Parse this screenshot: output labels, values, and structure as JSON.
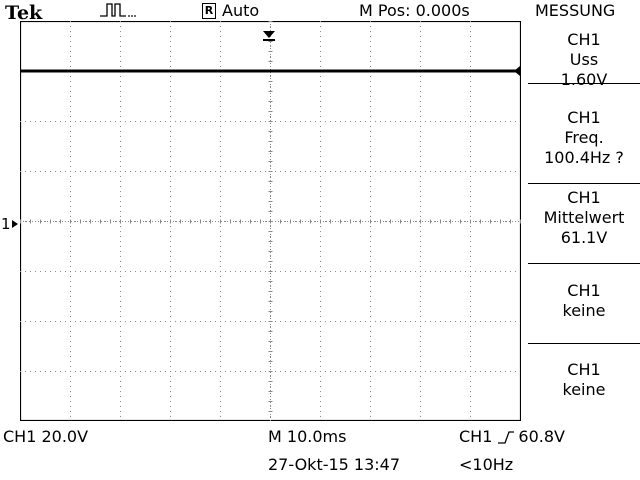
{
  "header": {
    "brand": "Tek",
    "acquire_icon": "pulse-acquire-icon",
    "trigger_box_letter": "R",
    "trigger_mode": "Auto",
    "mpos": "M Pos: 0.000s",
    "menu_title": "MESSUNG"
  },
  "screen": {
    "ch1_marker": "1",
    "trace_level_fraction": 0.125,
    "trigger_position_marker": "down-arrow-icon",
    "trigger_level_marker": "left-arrow-icon"
  },
  "menu": {
    "items": [
      {
        "line1": "CH1",
        "line2": "Uss",
        "line3": "1.60V"
      },
      {
        "line1": "CH1",
        "line2": "Freq.",
        "line3": "100.4Hz ?"
      },
      {
        "line1": "CH1",
        "line2": "Mittelwert",
        "line3": "61.1V"
      },
      {
        "line1": "CH1",
        "line2": "keine",
        "line3": ""
      },
      {
        "line1": "CH1",
        "line2": "keine",
        "line3": ""
      }
    ]
  },
  "footer": {
    "ch1_scale": "CH1  20.0V",
    "timebase": "M 10.0ms",
    "trigger_source": "CH1",
    "trigger_slope_icon": "rising-edge-icon",
    "trigger_level": "60.8V",
    "datetime": "27-Okt-15 13:47",
    "trigger_freq": "<10Hz"
  }
}
